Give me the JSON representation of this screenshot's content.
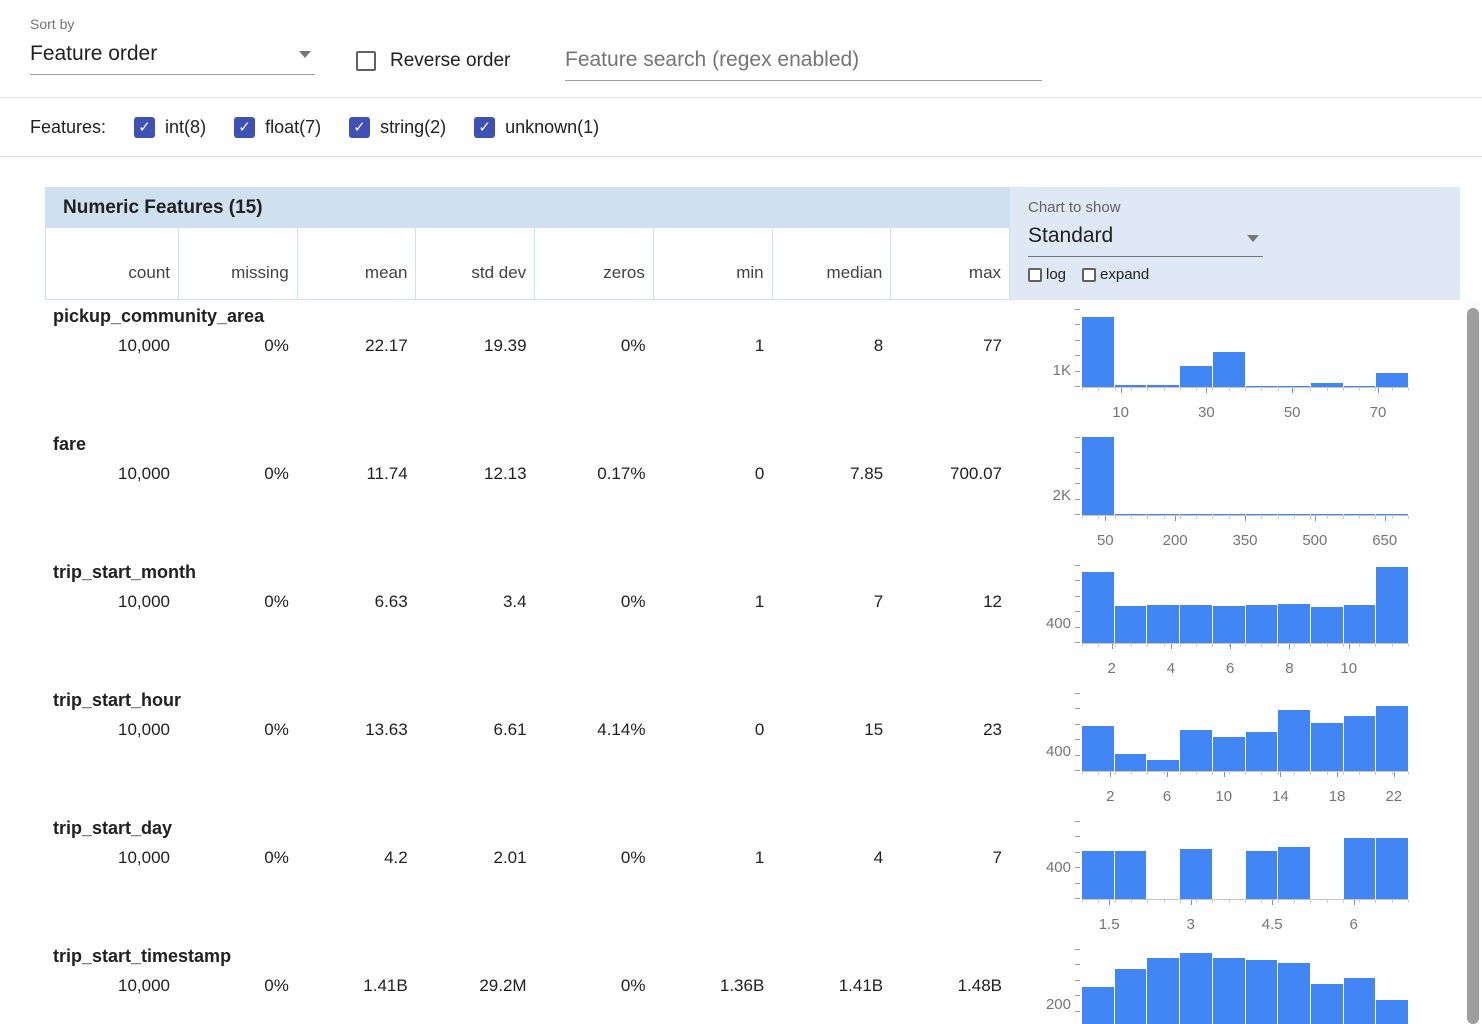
{
  "toolbar": {
    "sort_by_label": "Sort by",
    "sort_by_value": "Feature order",
    "reverse_order_label": "Reverse order",
    "reverse_order_checked": false,
    "search_placeholder": "Feature search (regex enabled)"
  },
  "features_filter": {
    "label": "Features:",
    "items": [
      {
        "id": "int",
        "label": "int(8)",
        "checked": true
      },
      {
        "id": "float",
        "label": "float(7)",
        "checked": true
      },
      {
        "id": "string",
        "label": "string(2)",
        "checked": true
      },
      {
        "id": "unknown",
        "label": "unknown(1)",
        "checked": true
      }
    ]
  },
  "table": {
    "title": "Numeric Features (15)",
    "columns": [
      "count",
      "missing",
      "mean",
      "std dev",
      "zeros",
      "min",
      "median",
      "max"
    ],
    "chart_controls": {
      "label": "Chart to show",
      "selected": "Standard",
      "log_label": "log",
      "log_checked": false,
      "expand_label": "expand",
      "expand_checked": false
    },
    "rows": [
      {
        "name": "pickup_community_area",
        "stats": [
          "10,000",
          "0%",
          "22.17",
          "19.39",
          "0%",
          "1",
          "8",
          "77"
        ]
      },
      {
        "name": "fare",
        "stats": [
          "10,000",
          "0%",
          "11.74",
          "12.13",
          "0.17%",
          "0",
          "7.85",
          "700.07"
        ]
      },
      {
        "name": "trip_start_month",
        "stats": [
          "10,000",
          "0%",
          "6.63",
          "3.4",
          "0%",
          "1",
          "7",
          "12"
        ]
      },
      {
        "name": "trip_start_hour",
        "stats": [
          "10,000",
          "0%",
          "13.63",
          "6.61",
          "4.14%",
          "0",
          "15",
          "23"
        ]
      },
      {
        "name": "trip_start_day",
        "stats": [
          "10,000",
          "0%",
          "4.2",
          "2.01",
          "0%",
          "1",
          "4",
          "7"
        ]
      },
      {
        "name": "trip_start_timestamp",
        "stats": [
          "10,000",
          "0%",
          "1.41B",
          "29.2M",
          "0%",
          "1.36B",
          "1.41B",
          "1.48B"
        ]
      }
    ]
  },
  "colors": {
    "bar": "#4285f4",
    "checkbox": "#3f51b5",
    "header_blue": "#cfe0f0",
    "panel_blue": "#dfe9f6"
  },
  "chart_data": [
    {
      "type": "bar",
      "feature": "pickup_community_area",
      "x_min": 1,
      "x_max": 77,
      "x_ticks": [
        10,
        30,
        50,
        70
      ],
      "y_tick_label": "1K",
      "y_tick_value": 1000,
      "y_max": 5000,
      "values": [
        4500,
        100,
        150,
        1350,
        2250,
        80,
        50,
        250,
        70,
        900
      ]
    },
    {
      "type": "bar",
      "feature": "fare",
      "x_min": 0,
      "x_max": 700,
      "x_ticks": [
        50,
        200,
        350,
        500,
        650
      ],
      "y_tick_label": "2K",
      "y_tick_value": 2000,
      "y_max": 8200,
      "values": [
        8200,
        140,
        70,
        40,
        25,
        18,
        12,
        8,
        5,
        4
      ]
    },
    {
      "type": "bar",
      "feature": "trip_start_month",
      "x_min": 1,
      "x_max": 12,
      "x_ticks": [
        2,
        4,
        6,
        8,
        10
      ],
      "y_tick_label": "400",
      "y_tick_value": 400,
      "y_max": 1600,
      "values": [
        1450,
        760,
        770,
        780,
        760,
        780,
        800,
        740,
        790,
        1560
      ]
    },
    {
      "type": "bar",
      "feature": "trip_start_hour",
      "x_min": 0,
      "x_max": 23,
      "x_ticks": [
        2,
        6,
        10,
        14,
        18,
        22
      ],
      "y_tick_label": "400",
      "y_tick_value": 400,
      "y_max": 1600,
      "values": [
        930,
        340,
        230,
        840,
        700,
        800,
        1260,
        990,
        1120,
        1330
      ]
    },
    {
      "type": "bar",
      "feature": "trip_start_day",
      "x_min": 1,
      "x_max": 7,
      "x_ticks": [
        1.5,
        3,
        4.5,
        6
      ],
      "y_tick_label": "400",
      "y_tick_value": 400,
      "y_max": 1000,
      "values": [
        620,
        620,
        0,
        640,
        0,
        620,
        670,
        0,
        780,
        780
      ]
    },
    {
      "type": "bar",
      "feature": "trip_start_timestamp",
      "x_min": 1360000000,
      "x_max": 1480000000,
      "x_ticks": [],
      "y_tick_label": "200",
      "y_tick_value": 200,
      "y_max": 700,
      "values": [
        360,
        520,
        620,
        660,
        615,
        600,
        575,
        385,
        440,
        245
      ]
    }
  ]
}
